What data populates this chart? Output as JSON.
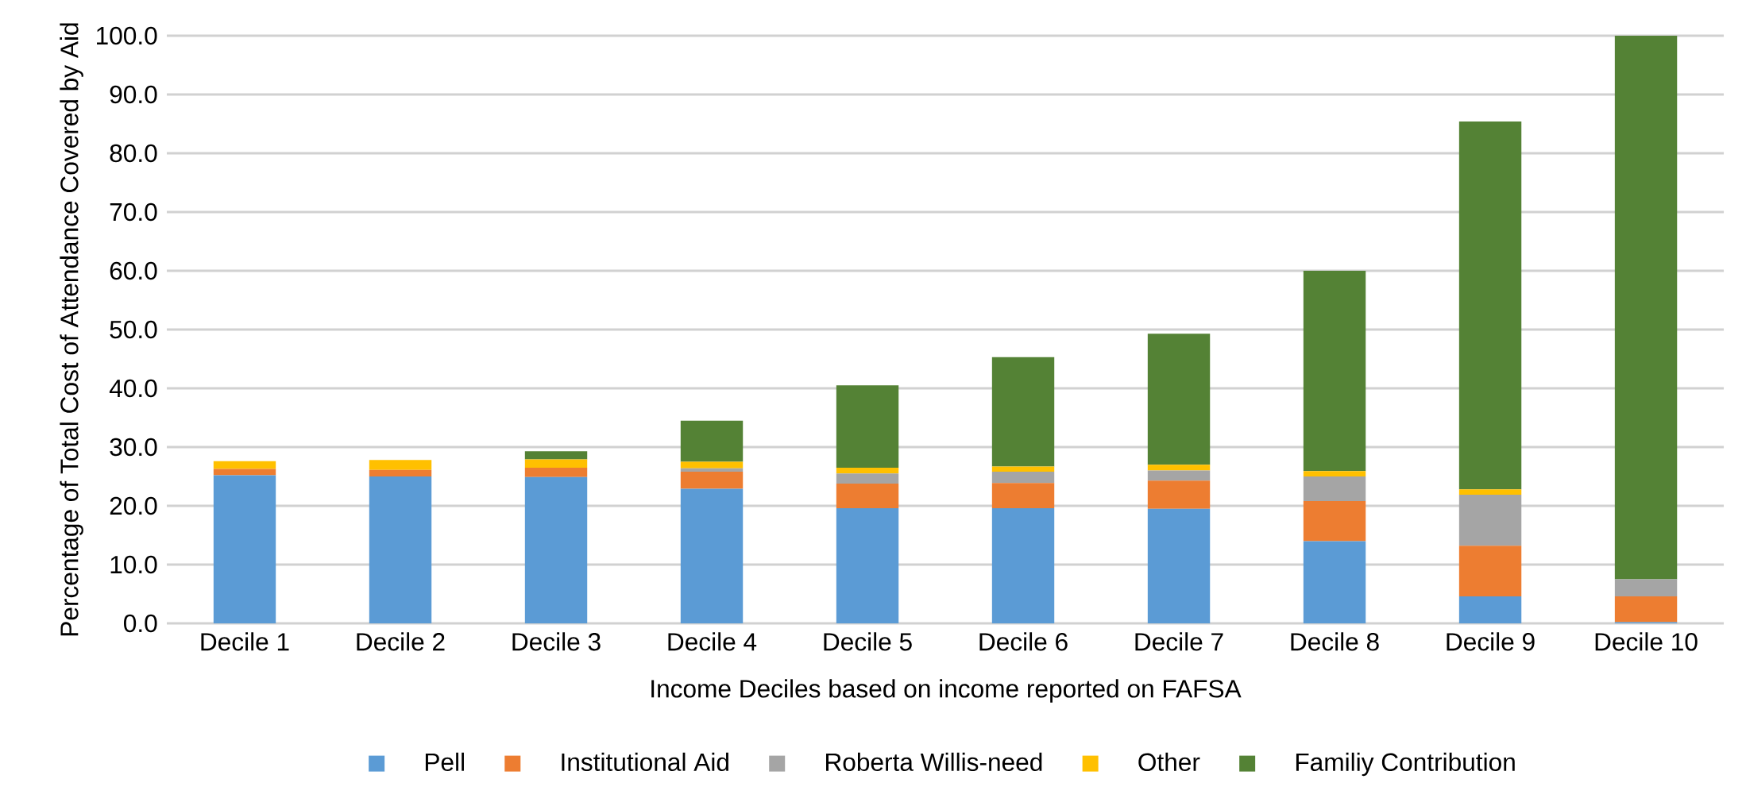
{
  "chart_data": {
    "type": "bar",
    "stacked": true,
    "categories": [
      "Decile 1",
      "Decile 2",
      "Decile 3",
      "Decile 4",
      "Decile 5",
      "Decile 6",
      "Decile 7",
      "Decile 8",
      "Decile 9",
      "Decile 10"
    ],
    "series": [
      {
        "name": "Pell",
        "color": "#5b9bd5",
        "values": [
          25.2,
          25.0,
          24.9,
          22.9,
          19.6,
          19.6,
          19.5,
          14.0,
          4.6,
          0.2
        ]
      },
      {
        "name": "Institutional Aid",
        "color": "#ed7d31",
        "values": [
          1.1,
          1.1,
          1.6,
          2.9,
          4.2,
          4.3,
          4.8,
          6.8,
          8.6,
          4.4
        ]
      },
      {
        "name": "Roberta Willis-need",
        "color": "#a5a5a5",
        "values": [
          0,
          0,
          0,
          0.6,
          1.7,
          1.9,
          1.7,
          4.2,
          8.7,
          2.9
        ]
      },
      {
        "name": "Other",
        "color": "#ffc000",
        "values": [
          1.3,
          1.7,
          1.4,
          1.1,
          1.0,
          0.9,
          1.0,
          0.9,
          0.9,
          0
        ]
      },
      {
        "name": "Familiy Contribution",
        "color": "#548235",
        "values": [
          null,
          null,
          1.4,
          7.0,
          14.0,
          18.6,
          22.3,
          34.1,
          62.6,
          92.5
        ]
      }
    ],
    "xlabel": "Income Deciles based on income reported on FAFSA",
    "ylabel": "Percentage of Total Cost of Attendance Covered by Aid",
    "ylim": [
      0,
      100
    ],
    "yticks": [
      {
        "value": 0,
        "label": "0.0"
      },
      {
        "value": 10,
        "label": "10.0"
      },
      {
        "value": 20,
        "label": "20.0"
      },
      {
        "value": 30,
        "label": "30.0"
      },
      {
        "value": 40,
        "label": "40.0"
      },
      {
        "value": 50,
        "label": "50.0"
      },
      {
        "value": 60,
        "label": "60.0"
      },
      {
        "value": 70,
        "label": "70.0"
      },
      {
        "value": 80,
        "label": "80.0"
      },
      {
        "value": 90,
        "label": "90.0"
      },
      {
        "value": 100,
        "label": "100.0"
      }
    ],
    "grid": "y",
    "legend": "bottom"
  }
}
